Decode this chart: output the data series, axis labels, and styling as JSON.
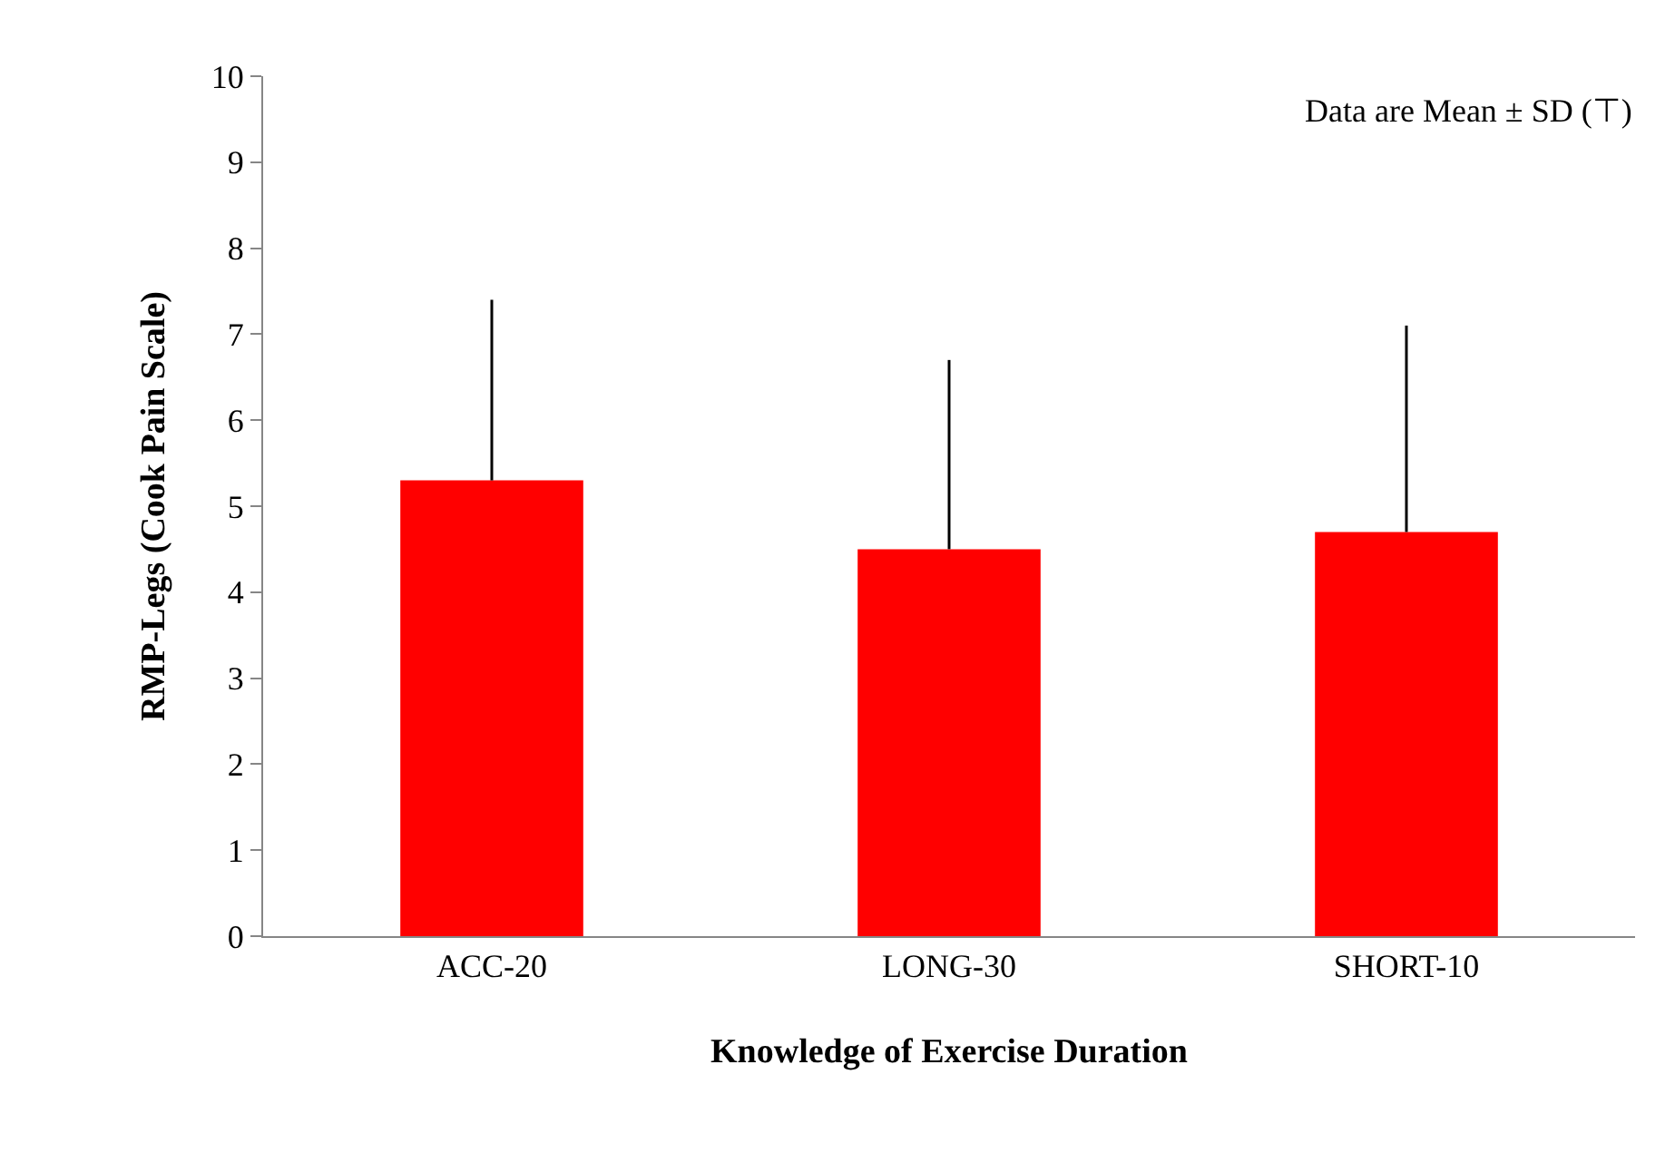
{
  "chart_data": {
    "type": "bar",
    "xlabel": "Knowledge of Exercise Duration",
    "ylabel": "RMP-Legs (Cook Pain Scale)",
    "categories": [
      "ACC-20",
      "LONG-30",
      "SHORT-10"
    ],
    "values": [
      5.3,
      4.5,
      4.7
    ],
    "errors": [
      [
        5.3,
        7.4
      ],
      [
        4.5,
        6.7
      ],
      [
        4.7,
        7.1
      ]
    ],
    "color": "#ff0000",
    "ylim": [
      0,
      10
    ],
    "yticks": [
      0,
      1,
      2,
      3,
      4,
      5,
      6,
      7,
      8,
      9,
      10
    ],
    "grid": false,
    "annotations": [
      "Data are Mean ± SD (⊤)"
    ]
  }
}
